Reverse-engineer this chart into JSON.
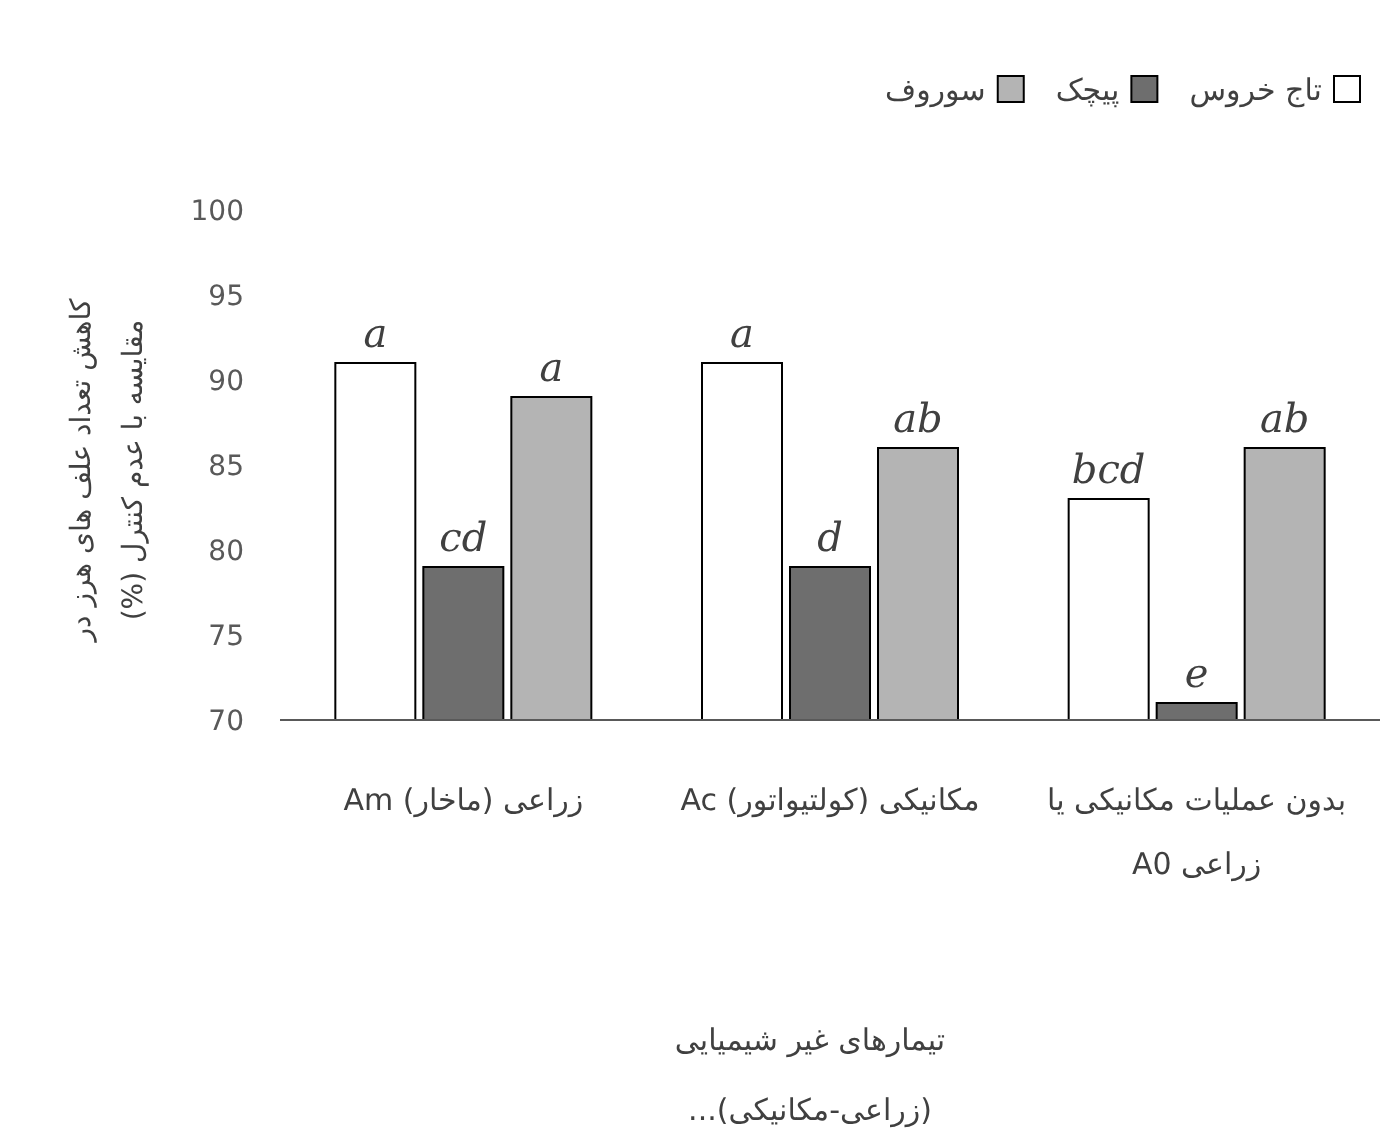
{
  "chart_data": {
    "type": "bar",
    "ylabel": "کاهش تعداد علف های هرز در مقایسه با عدم کنترل (%)",
    "xlabel": "تیمارهای غیر شیمیایی (زراعی-مکانیکی)...",
    "categories": [
      "زراعی (ماخار) Am",
      "مکانیکی (کولتیواتور) Ac",
      "بدون عملیات مکانیکی یا زراعی A0"
    ],
    "series": [
      {
        "name": "تاج خروس",
        "color": "#ffffff",
        "values": [
          91,
          91,
          83
        ],
        "value_labels": [
          "a",
          "a",
          "bcd"
        ]
      },
      {
        "name": "پیچک",
        "color": "#6e6e6e",
        "values": [
          79,
          79,
          71
        ],
        "value_labels": [
          "cd",
          "d",
          "e"
        ]
      },
      {
        "name": "سوروف",
        "color": "#b4b4b4",
        "values": [
          89,
          86,
          86
        ],
        "value_labels": [
          "a",
          "ab",
          "ab"
        ]
      }
    ],
    "ylim": [
      70,
      100
    ],
    "yticks": [
      70,
      75,
      80,
      85,
      90,
      95,
      100
    ],
    "grid": false,
    "legend": "top right"
  }
}
